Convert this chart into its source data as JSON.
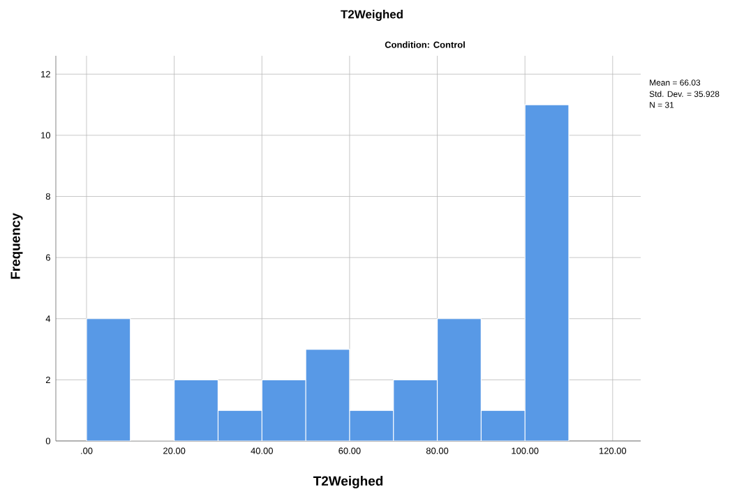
{
  "chart_data": {
    "type": "histogram",
    "title": "T2Weighed",
    "subtitle": "Condition: Control",
    "xlabel": "T2Weighed",
    "ylabel": "Frequency",
    "bins": [
      0,
      10,
      20,
      30,
      40,
      50,
      60,
      70,
      80,
      90,
      100,
      110
    ],
    "values": [
      4,
      0,
      2,
      1,
      2,
      3,
      1,
      2,
      4,
      1,
      11
    ],
    "color": "#5899e6",
    "xlim": [
      -7,
      126.4
    ],
    "ylim": [
      0,
      12.6
    ],
    "xticks": [
      {
        "value": 0,
        "label": ".00"
      },
      {
        "value": 20,
        "label": "20.00"
      },
      {
        "value": 40,
        "label": "40.00"
      },
      {
        "value": 60,
        "label": "60.00"
      },
      {
        "value": 80,
        "label": "80.00"
      },
      {
        "value": 100,
        "label": "100.00"
      },
      {
        "value": 120,
        "label": "120.00"
      }
    ],
    "yticks": [
      0,
      2,
      4,
      6,
      8,
      10,
      12
    ],
    "grid": true,
    "annotations": [
      "Mean = 66.03",
      "Std. Dev. = 35.928",
      "N = 31"
    ]
  }
}
